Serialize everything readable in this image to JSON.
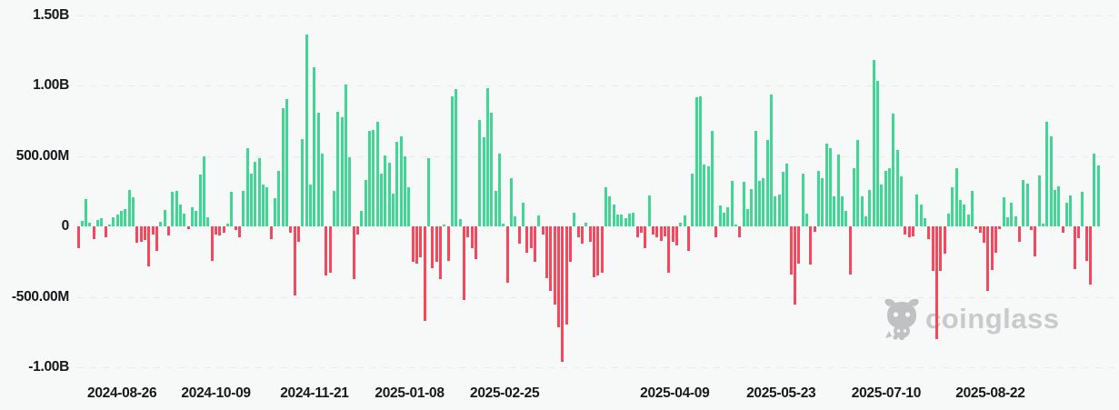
{
  "chart_data": {
    "type": "bar",
    "title": "",
    "description": "Daily net flow bar chart (green = inflow, red = outflow), values in USD",
    "value_unit": "M",
    "ylim": [
      -1100,
      1550
    ],
    "grid": "dashed-horizontal",
    "positive_color": "#41d693",
    "negative_color": "#f5475d",
    "y_ticks": [
      {
        "label": "1.50B",
        "value": 1500
      },
      {
        "label": "1.00B",
        "value": 1000
      },
      {
        "label": "500.00M",
        "value": 500
      },
      {
        "label": "0",
        "value": 0
      },
      {
        "label": "-500.00M",
        "value": -500
      },
      {
        "label": "-1.00B",
        "value": -1000
      }
    ],
    "x_ticks": [
      {
        "label": "2024-08-26",
        "pos_pct": 10.9
      },
      {
        "label": "2024-10-09",
        "pos_pct": 19.3
      },
      {
        "label": "2024-11-21",
        "pos_pct": 28.1
      },
      {
        "label": "2025-01-08",
        "pos_pct": 36.6
      },
      {
        "label": "2025-02-25",
        "pos_pct": 45.1
      },
      {
        "label": "2025-04-09",
        "pos_pct": 60.3
      },
      {
        "label": "2025-05-23",
        "pos_pct": 69.8
      },
      {
        "label": "2025-07-10",
        "pos_pct": 79.2
      },
      {
        "label": "2025-08-22",
        "pos_pct": 88.5
      }
    ],
    "values": [
      -155,
      40,
      195,
      25,
      -90,
      45,
      55,
      -75,
      15,
      65,
      85,
      110,
      125,
      255,
      205,
      -119,
      -108,
      -97,
      -285,
      -60,
      -177,
      32,
      119,
      -65,
      248,
      254,
      157,
      93,
      -17,
      136,
      108,
      367,
      496,
      65,
      -242,
      -58,
      -65,
      -43,
      22,
      244,
      -26,
      -76,
      254,
      556,
      373,
      459,
      481,
      298,
      276,
      -91,
      201,
      395,
      837,
      901,
      -47,
      -490,
      -112,
      617,
      1359,
      298,
      1126,
      804,
      513,
      -349,
      -328,
      254,
      815,
      772,
      1009,
      492,
      -371,
      -58,
      108,
      330,
      675,
      686,
      740,
      373,
      503,
      449,
      233,
      600,
      636,
      496,
      276,
      -252,
      -263,
      -220,
      -673,
      481,
      -295,
      -252,
      -371,
      11,
      -242,
      923,
      977,
      50,
      -522,
      -80,
      -155,
      -231,
      755,
      632,
      981,
      804,
      254,
      518,
      17,
      -403,
      341,
      71,
      -123,
      168,
      -188,
      -155,
      -252,
      76,
      -58,
      -367,
      -457,
      -554,
      -716,
      -964,
      -694,
      -252,
      97,
      -80,
      -123,
      28,
      -112,
      -360,
      -349,
      -328,
      276,
      216,
      157,
      82,
      86,
      60,
      93,
      99,
      -80,
      -47,
      -155,
      222,
      -58,
      -80,
      -101,
      -69,
      -328,
      -112,
      -134,
      28,
      78,
      -177,
      373,
      917,
      923,
      438,
      427,
      675,
      -80,
      147,
      99,
      136,
      323,
      13,
      -80,
      315,
      125,
      265,
      675,
      323,
      341,
      610,
      934,
      211,
      229,
      384,
      444,
      -339,
      -554,
      -263,
      373,
      93,
      -274,
      -37,
      395,
      341,
      589,
      552,
      216,
      509,
      211,
      108,
      -339,
      410,
      610,
      216,
      71,
      259,
      1178,
      1035,
      298,
      395,
      410,
      800,
      539,
      358,
      -58,
      -80,
      -69,
      229,
      157,
      60,
      -91,
      -317,
      -802,
      -313,
      -194,
      93,
      276,
      410,
      185,
      157,
      82,
      250,
      -22,
      -47,
      -116,
      -457,
      -311,
      -188,
      -22,
      207,
      65,
      168,
      71,
      -108,
      330,
      302,
      -26,
      -216,
      362,
      17,
      740,
      638,
      261,
      287,
      -47,
      168,
      222,
      -306,
      -86,
      244,
      -242,
      -410,
      518,
      431
    ]
  },
  "watermark": {
    "text": "coinglass",
    "icon": "coinglass-bull-icon"
  },
  "colors": {
    "background": "#f7f8f8",
    "gridline": "#e8e9ea",
    "axis_text": "#16181a",
    "watermark": "#c4c5c6"
  }
}
